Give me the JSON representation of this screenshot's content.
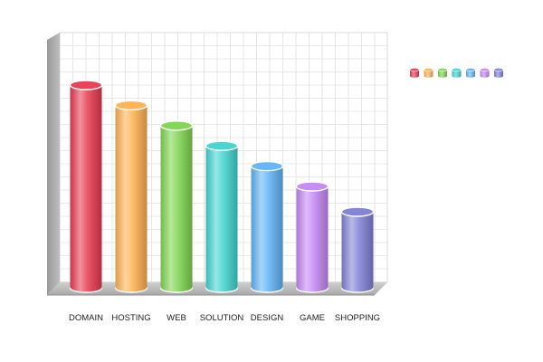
{
  "chart_data": {
    "type": "bar",
    "style": "3d-cylinder",
    "title": "",
    "xlabel": "",
    "ylabel": "",
    "grid": true,
    "legend_position": "right",
    "ylim": [
      0,
      100
    ],
    "categories": [
      "DOMAIN",
      "HOSTING",
      "WEB",
      "SOLUTION",
      "DESIGN",
      "GAME",
      "SHOPPING"
    ],
    "values": [
      80,
      72,
      64,
      56,
      48,
      40,
      30
    ],
    "colors": [
      "#e8394f",
      "#ffb050",
      "#7ed44e",
      "#3fd4d0",
      "#5fb2f5",
      "#c486f4",
      "#7f7fd6"
    ]
  }
}
